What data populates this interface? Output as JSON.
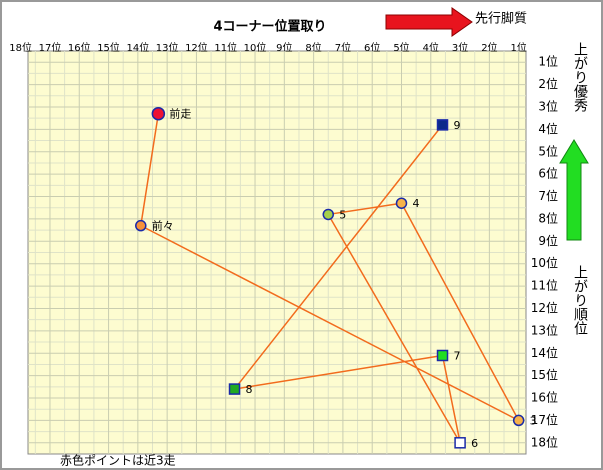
{
  "chart_data": {
    "type": "scatter",
    "title": "4コーナー位置取り",
    "annotations": {
      "direction": "先行脚質",
      "top_right": "上がり優秀",
      "y_axis": "上がり順位",
      "footnote": "赤色ポイントは近3走"
    },
    "x": [
      13.3,
      13.9,
      1.0,
      5.0,
      7.5,
      3.0,
      3.6,
      10.7,
      3.6
    ],
    "values": [
      3.3,
      8.3,
      17.0,
      7.3,
      7.8,
      18.0,
      14.1,
      15.6,
      3.8
    ],
    "point_labels": [
      "前走",
      "前々",
      "3",
      "4",
      "5",
      "6",
      "7",
      "8",
      "9"
    ],
    "markers": [
      "circle",
      "circle",
      "circle",
      "circle",
      "circle",
      "square",
      "square",
      "square",
      "square"
    ],
    "point_colors": [
      "#ee1133",
      "#f7923a",
      "#f7b24a",
      "#f7b24a",
      "#a6d04a",
      "#ffffff",
      "#22dd22",
      "#22aa22",
      "#0b2a8a"
    ],
    "outline_color": "#1a2aa8",
    "line_color": "#f26b1d",
    "xlim": [
      17.75,
      0.75
    ],
    "ylim": [
      0.5,
      18.5
    ],
    "xticks": [
      {
        "value": 18,
        "label": "18位"
      },
      {
        "value": 17,
        "label": "17位"
      },
      {
        "value": 16,
        "label": "16位"
      },
      {
        "value": 15,
        "label": "15位"
      },
      {
        "value": 14,
        "label": "14位"
      },
      {
        "value": 13,
        "label": "13位"
      },
      {
        "value": 12,
        "label": "12位"
      },
      {
        "value": 11,
        "label": "11位"
      },
      {
        "value": 10,
        "label": "10位"
      },
      {
        "value": 9,
        "label": "9位"
      },
      {
        "value": 8,
        "label": "8位"
      },
      {
        "value": 7,
        "label": "7位"
      },
      {
        "value": 6,
        "label": "6位"
      },
      {
        "value": 5,
        "label": "5位"
      },
      {
        "value": 4,
        "label": "4位"
      },
      {
        "value": 3,
        "label": "3位"
      },
      {
        "value": 2,
        "label": "2位"
      },
      {
        "value": 1,
        "label": "1位"
      }
    ],
    "yticks": [
      {
        "value": 1,
        "label": "1位"
      },
      {
        "value": 2,
        "label": "2位"
      },
      {
        "value": 3,
        "label": "3位"
      },
      {
        "value": 4,
        "label": "4位"
      },
      {
        "value": 5,
        "label": "5位"
      },
      {
        "value": 6,
        "label": "6位"
      },
      {
        "value": 7,
        "label": "7位"
      },
      {
        "value": 8,
        "label": "8位"
      },
      {
        "value": 9,
        "label": "9位"
      },
      {
        "value": 10,
        "label": "10位"
      },
      {
        "value": 11,
        "label": "11位"
      },
      {
        "value": 12,
        "label": "12位"
      },
      {
        "value": 13,
        "label": "13位"
      },
      {
        "value": 14,
        "label": "14位"
      },
      {
        "value": 15,
        "label": "15位"
      },
      {
        "value": 16,
        "label": "16位"
      },
      {
        "value": 17,
        "label": "17位"
      },
      {
        "value": 18,
        "label": "18位"
      }
    ],
    "grid": true
  }
}
